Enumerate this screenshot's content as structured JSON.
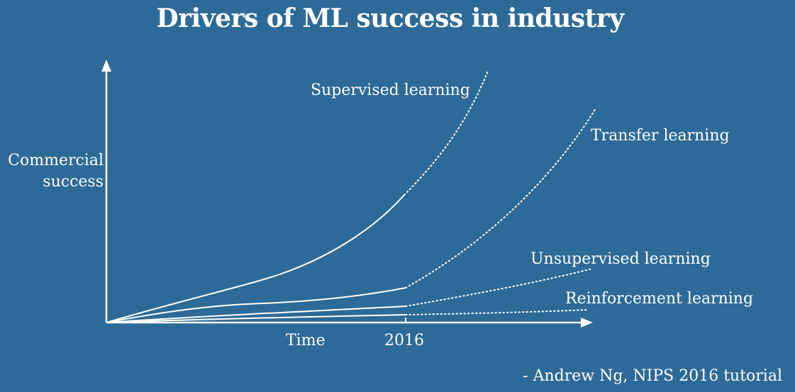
{
  "title": "Drivers of ML success in industry",
  "y_axis": {
    "label_line1": "Commercial",
    "label_line2": "success"
  },
  "x_axis": {
    "label": "Time",
    "tick": "2016"
  },
  "curves": [
    {
      "label": "Supervised learning"
    },
    {
      "label": "Transfer learning"
    },
    {
      "label": "Unsupervised learning"
    },
    {
      "label": "Reinforcement learning"
    }
  ],
  "attribution": "- Andrew Ng, NIPS 2016 tutorial"
}
